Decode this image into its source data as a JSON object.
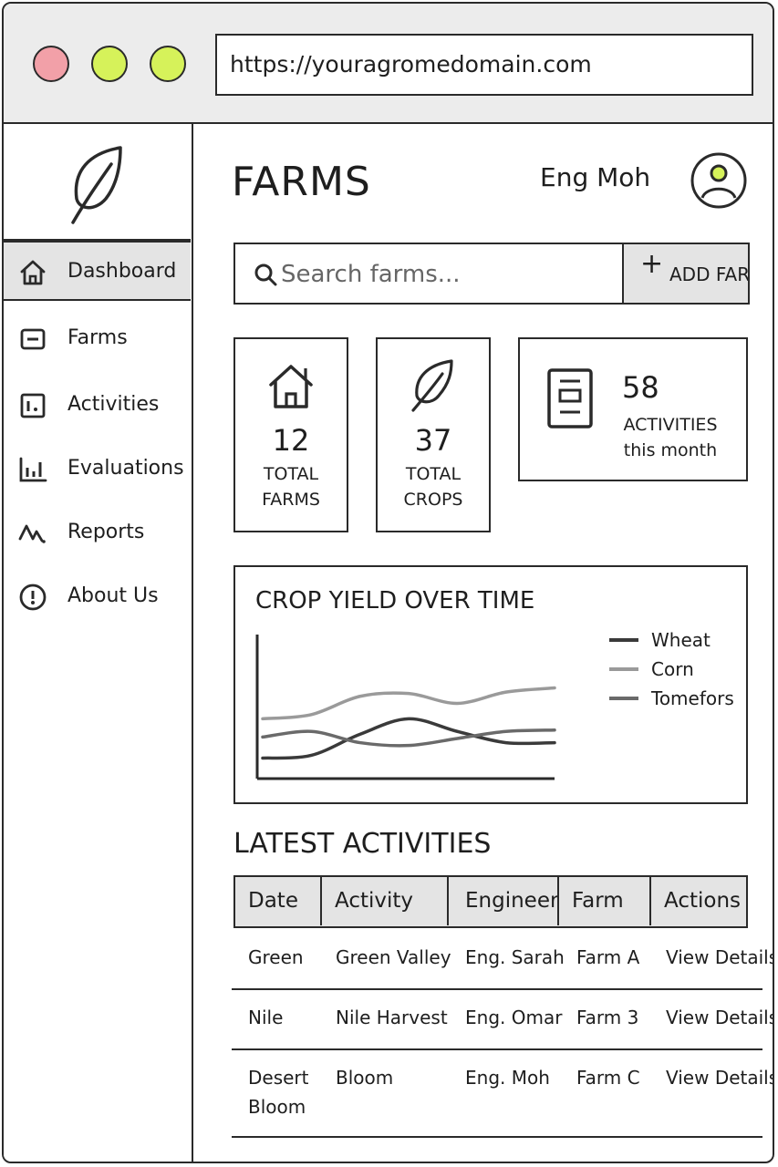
{
  "browser": {
    "url": "https://youragromedomain.com",
    "dot_colors": [
      "#f2a0a8",
      "#d6f25a",
      "#d6f25a"
    ]
  },
  "sidebar": {
    "logo_icon": "leaf-icon",
    "items": [
      {
        "label": "Dashboard",
        "icon": "home-icon",
        "active": true
      },
      {
        "label": "Farms",
        "icon": "farms-icon"
      },
      {
        "label": "Activities",
        "icon": "activities-icon"
      },
      {
        "label": "Evaluations",
        "icon": "bar-chart-icon"
      },
      {
        "label": "Reports",
        "icon": "pulse-icon"
      },
      {
        "label": "About Us",
        "icon": "info-icon"
      }
    ]
  },
  "header": {
    "title": "FARMS",
    "user_name": "Eng Moh",
    "avatar_icon": "user-avatar-icon",
    "avatar_accent": "#d6f25a"
  },
  "search": {
    "placeholder": "Search farms...",
    "value": ""
  },
  "toolbar": {
    "add_label": "ADD FARM"
  },
  "stats": {
    "total_farms": {
      "value": "12",
      "line1": "TOTAL",
      "line2": "FARMS"
    },
    "total_crops": {
      "value": "37",
      "line1": "TOTAL",
      "line2": "CROPS"
    },
    "activities": {
      "value": "58",
      "line1": "ACTIVITIES",
      "line2": "this month"
    }
  },
  "chart_data": {
    "type": "line",
    "title": "CROP YIELD OVER TIME",
    "xlabel": "",
    "ylabel": "",
    "x": [
      0,
      1,
      2,
      3,
      4,
      5,
      6
    ],
    "ylim": [
      0,
      10
    ],
    "grid": false,
    "legend_position": "right",
    "series": [
      {
        "name": "Wheat",
        "color": "#3a3a3a",
        "values": [
          1.2,
          1.4,
          2.9,
          4.0,
          3.1,
          2.3,
          2.3
        ]
      },
      {
        "name": "Corn",
        "color": "#9a9a9a",
        "values": [
          4.0,
          4.3,
          5.6,
          5.8,
          5.1,
          5.9,
          6.2
        ]
      },
      {
        "name": "Tomefors",
        "color": "#6a6a6a",
        "values": [
          2.7,
          3.1,
          2.3,
          2.1,
          2.6,
          3.1,
          3.2
        ]
      }
    ]
  },
  "activities_table": {
    "title": "LATEST ACTIVITIES",
    "columns": [
      "Date",
      "Activity",
      "Engineer",
      "Farm",
      "Actions"
    ],
    "rows": [
      {
        "date": "Green",
        "date2": "",
        "activity": "Green Valley",
        "engineer": "Eng. Sarah",
        "farm": "Farm A",
        "action": "View Details"
      },
      {
        "date": "Nile",
        "date2": "",
        "activity": "Nile Harvest",
        "engineer": "Eng. Omar",
        "farm": "Farm 3",
        "action": "View Details"
      },
      {
        "date": "Desert",
        "date2": "Bloom",
        "activity": "Bloom",
        "engineer": "Eng. Moh",
        "farm": "Farm C",
        "action": "View Details"
      }
    ]
  }
}
